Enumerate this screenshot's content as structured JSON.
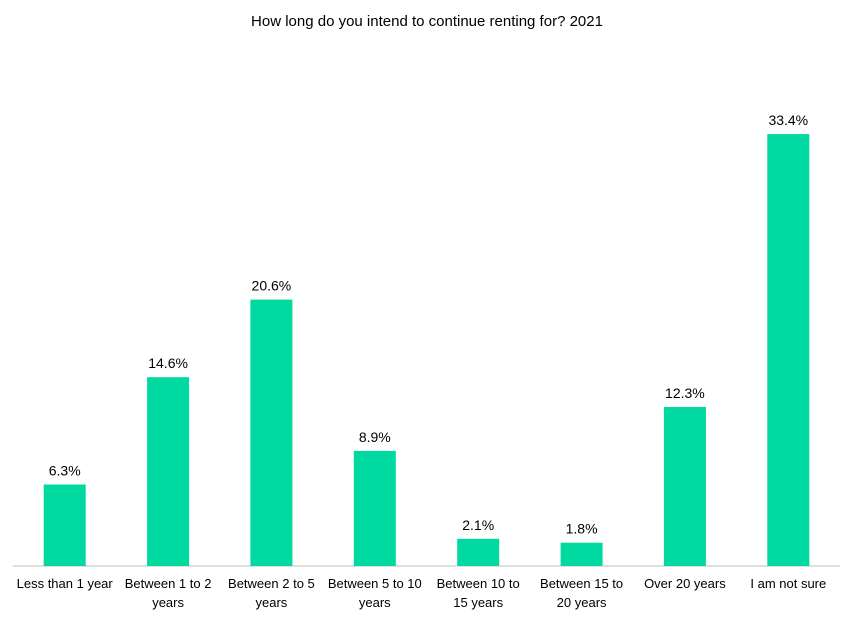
{
  "chart_data": {
    "type": "bar",
    "title": "How long do you intend to continue renting for? 2021",
    "xlabel": "",
    "ylabel": "",
    "ylim": [
      0,
      35
    ],
    "grid": false,
    "legend": "none",
    "bar_color": "#00D9A0",
    "categories": [
      [
        "Less than 1 year"
      ],
      [
        "Between 1 to 2",
        "years"
      ],
      [
        "Between 2 to 5",
        "years"
      ],
      [
        "Between 5 to 10",
        "years"
      ],
      [
        "Between 10 to",
        "15 years"
      ],
      [
        "Between 15 to",
        "20 years"
      ],
      [
        "Over 20 years"
      ],
      [
        "I am not sure"
      ]
    ],
    "values": [
      6.3,
      14.6,
      20.6,
      8.9,
      2.1,
      1.8,
      12.3,
      33.4
    ],
    "value_labels": [
      "6.3%",
      "14.6%",
      "20.6%",
      "8.9%",
      "2.1%",
      "1.8%",
      "12.3%",
      "33.4%"
    ]
  }
}
